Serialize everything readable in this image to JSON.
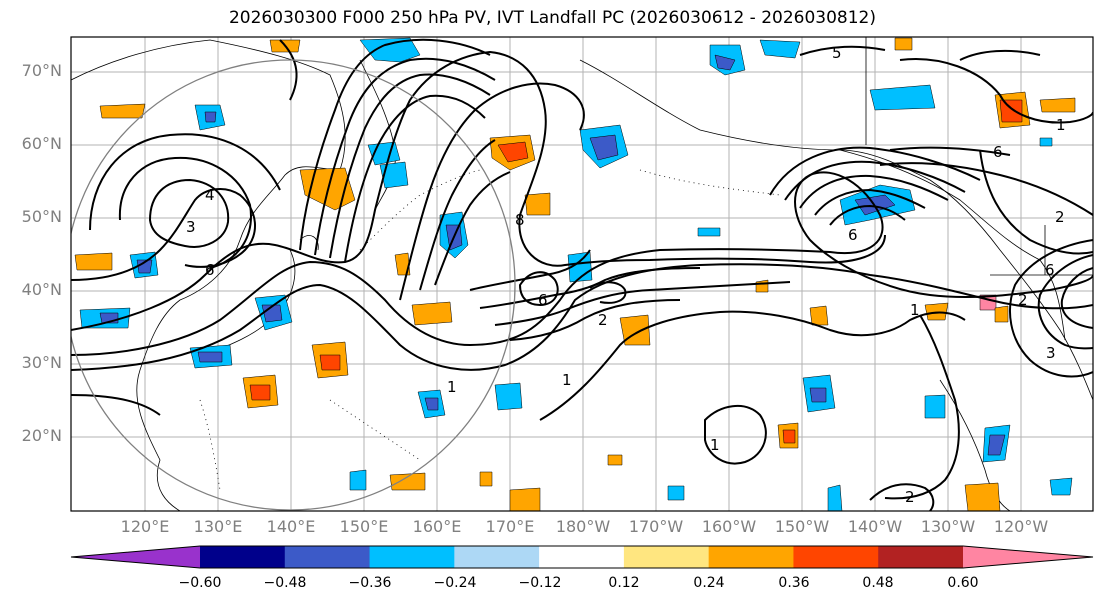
{
  "title": "2026030300 F000 250 hPa PV, IVT Landfall PC (2026030612 - 2026030812)",
  "lat_labels": [
    "70°N",
    "60°N",
    "50°N",
    "40°N",
    "30°N",
    "20°N"
  ],
  "lon_labels": [
    "120°E",
    "130°E",
    "140°E",
    "150°E",
    "160°E",
    "170°E",
    "180°W",
    "170°W",
    "160°W",
    "150°W",
    "140°W",
    "130°W",
    "120°W"
  ],
  "colorbar": {
    "ticks": [
      "−0.60",
      "−0.48",
      "−0.36",
      "−0.24",
      "−0.12",
      "0.12",
      "0.24",
      "0.36",
      "0.48",
      "0.60"
    ],
    "colors": [
      "#9932cc",
      "#00008b",
      "#3c5ac8",
      "#00bfff",
      "#add8f5",
      "#ffffff",
      "#ffe680",
      "#ffa500",
      "#ff4500",
      "#b22222",
      "#ff85a2"
    ]
  },
  "contour_labels": [
    "5",
    "4",
    "3",
    "1",
    "6",
    "2",
    "8"
  ]
}
